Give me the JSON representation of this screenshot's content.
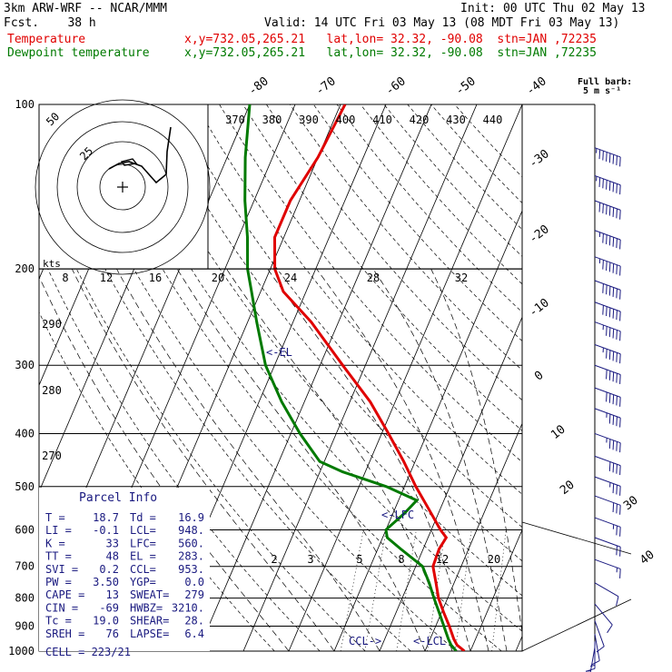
{
  "header": {
    "model": "3km ARW-WRF -- NCAR/MMM",
    "fcst_label": "Fcst.",
    "fcst_value": "38 h",
    "init": "Init: 00 UTC Thu 02 May 13",
    "valid": "Valid: 14 UTC Fri 03 May 13 (08 MDT Fri 03 May 13)",
    "temp_label": "Temperature",
    "dew_label": "Dewpoint temperature",
    "xy": "x,y=732.05,265.21",
    "latlon": "lat,lon= 32.32, -90.08",
    "stn": "stn=JAN ,72235",
    "barb_note_1": "Full barb:",
    "barb_note_2": "5 m s⁻¹"
  },
  "colors": {
    "temperature": "#e00000",
    "dewpoint": "#007a00",
    "text": "#000000",
    "info": "#1a1a80"
  },
  "chart_data": {
    "type": "skew-t",
    "pressure_levels": [
      100,
      200,
      300,
      400,
      500,
      600,
      700,
      800,
      900,
      1000
    ],
    "isotherm_labels": [
      "-80",
      "-70",
      "-60",
      "-50",
      "-40",
      "-30",
      "-20",
      "-10",
      "0",
      "10",
      "20",
      "30",
      "40"
    ],
    "theta_labels": [
      "370",
      "380",
      "390",
      "400",
      "410",
      "420",
      "430",
      "440"
    ],
    "theta_side_labels": [
      "290",
      "280",
      "270"
    ],
    "hodo_speed_labels": [
      "8",
      "12",
      "16",
      "20",
      "24",
      "28",
      "32"
    ],
    "hodo_units": "kts",
    "hodo_ring_labels": [
      "50",
      "25"
    ],
    "mixing_ratio_labels": [
      "2",
      "3",
      "5",
      "8",
      "12",
      "20"
    ],
    "annotations": [
      "<-EL",
      "<-LFC",
      "CCL->",
      "<-LCL"
    ],
    "temperature": [
      {
        "p": 1000,
        "t": 18.7
      },
      {
        "p": 975,
        "t": 16.5
      },
      {
        "p": 950,
        "t": 15.2
      },
      {
        "p": 900,
        "t": 13.0
      },
      {
        "p": 850,
        "t": 10.5
      },
      {
        "p": 800,
        "t": 8.0
      },
      {
        "p": 750,
        "t": 6.0
      },
      {
        "p": 700,
        "t": 3.8
      },
      {
        "p": 650,
        "t": 3.5
      },
      {
        "p": 620,
        "t": 4.0
      },
      {
        "p": 600,
        "t": 2.0
      },
      {
        "p": 550,
        "t": -2.5
      },
      {
        "p": 500,
        "t": -7.5
      },
      {
        "p": 450,
        "t": -12.5
      },
      {
        "p": 400,
        "t": -18.5
      },
      {
        "p": 350,
        "t": -25.5
      },
      {
        "p": 300,
        "t": -35.0
      },
      {
        "p": 250,
        "t": -46.0
      },
      {
        "p": 220,
        "t": -55.0
      },
      {
        "p": 200,
        "t": -59.0
      },
      {
        "p": 175,
        "t": -62.0
      },
      {
        "p": 150,
        "t": -62.0
      },
      {
        "p": 125,
        "t": -60.0
      },
      {
        "p": 100,
        "t": -59.0
      }
    ],
    "dewpoint": [
      {
        "p": 1000,
        "t": 16.9
      },
      {
        "p": 975,
        "t": 15.2
      },
      {
        "p": 950,
        "t": 14.0
      },
      {
        "p": 900,
        "t": 11.8
      },
      {
        "p": 850,
        "t": 9.5
      },
      {
        "p": 800,
        "t": 7.0
      },
      {
        "p": 750,
        "t": 4.5
      },
      {
        "p": 700,
        "t": 1.5
      },
      {
        "p": 650,
        "t": -5.0
      },
      {
        "p": 620,
        "t": -9.0
      },
      {
        "p": 600,
        "t": -10.0
      },
      {
        "p": 560,
        "t": -7.5
      },
      {
        "p": 530,
        "t": -6.0
      },
      {
        "p": 500,
        "t": -14.0
      },
      {
        "p": 470,
        "t": -25.0
      },
      {
        "p": 450,
        "t": -31.0
      },
      {
        "p": 400,
        "t": -38.0
      },
      {
        "p": 350,
        "t": -45.0
      },
      {
        "p": 300,
        "t": -52.0
      },
      {
        "p": 250,
        "t": -58.0
      },
      {
        "p": 220,
        "t": -62.0
      },
      {
        "p": 200,
        "t": -65.0
      },
      {
        "p": 175,
        "t": -68.0
      },
      {
        "p": 150,
        "t": -72.0
      },
      {
        "p": 125,
        "t": -76.0
      },
      {
        "p": 100,
        "t": -80.0
      }
    ],
    "wind_barbs": [
      {
        "p": 120,
        "dir": 250,
        "spd": 75
      },
      {
        "p": 135,
        "dir": 250,
        "spd": 75
      },
      {
        "p": 150,
        "dir": 250,
        "spd": 70
      },
      {
        "p": 170,
        "dir": 250,
        "spd": 65
      },
      {
        "p": 190,
        "dir": 250,
        "spd": 65
      },
      {
        "p": 210,
        "dir": 250,
        "spd": 60
      },
      {
        "p": 230,
        "dir": 250,
        "spd": 60
      },
      {
        "p": 250,
        "dir": 250,
        "spd": 55
      },
      {
        "p": 275,
        "dir": 250,
        "spd": 55
      },
      {
        "p": 300,
        "dir": 250,
        "spd": 50
      },
      {
        "p": 330,
        "dir": 250,
        "spd": 50
      },
      {
        "p": 360,
        "dir": 250,
        "spd": 45
      },
      {
        "p": 400,
        "dir": 250,
        "spd": 45
      },
      {
        "p": 440,
        "dir": 250,
        "spd": 40
      },
      {
        "p": 480,
        "dir": 250,
        "spd": 35
      },
      {
        "p": 520,
        "dir": 250,
        "spd": 30
      },
      {
        "p": 570,
        "dir": 250,
        "spd": 25
      },
      {
        "p": 620,
        "dir": 250,
        "spd": 20
      },
      {
        "p": 680,
        "dir": 250,
        "spd": 15
      },
      {
        "p": 750,
        "dir": 240,
        "spd": 10
      },
      {
        "p": 820,
        "dir": 220,
        "spd": 10
      },
      {
        "p": 880,
        "dir": 200,
        "spd": 10
      },
      {
        "p": 930,
        "dir": 190,
        "spd": 10
      },
      {
        "p": 960,
        "dir": 180,
        "spd": 15
      },
      {
        "p": 985,
        "dir": 170,
        "spd": 15
      }
    ]
  },
  "parcel_info": {
    "title": "Parcel Info",
    "rows": [
      {
        "l1": "T  ",
        "v1": "18.7",
        "l2": "Td ",
        "v2": "16.9"
      },
      {
        "l1": "LI ",
        "v1": "-0.1",
        "l2": "LCL",
        "v2": "948."
      },
      {
        "l1": "K  ",
        "v1": "33",
        "l2": "LFC",
        "v2": "560."
      },
      {
        "l1": "TT ",
        "v1": "48",
        "l2": "EL ",
        "v2": "283."
      },
      {
        "l1": "SVI",
        "v1": "0.2",
        "l2": "CCL",
        "v2": "953."
      },
      {
        "l1": "PW ",
        "v1": "3.50",
        "l2": "YGP",
        "v2": "0.0"
      },
      {
        "l1": "CAPE",
        "v1": "13",
        "l2": "SWEAT",
        "v2": "279"
      },
      {
        "l1": "CIN",
        "v1": "-69",
        "l2": "HWBZ",
        "v2": "3210."
      },
      {
        "l1": "Tc ",
        "v1": "19.0",
        "l2": "SHEAR",
        "v2": "28."
      },
      {
        "l1": "SREH",
        "v1": "76",
        "l2": "LAPSE",
        "v2": "6.4"
      }
    ],
    "cell": "CELL = 223/21"
  }
}
